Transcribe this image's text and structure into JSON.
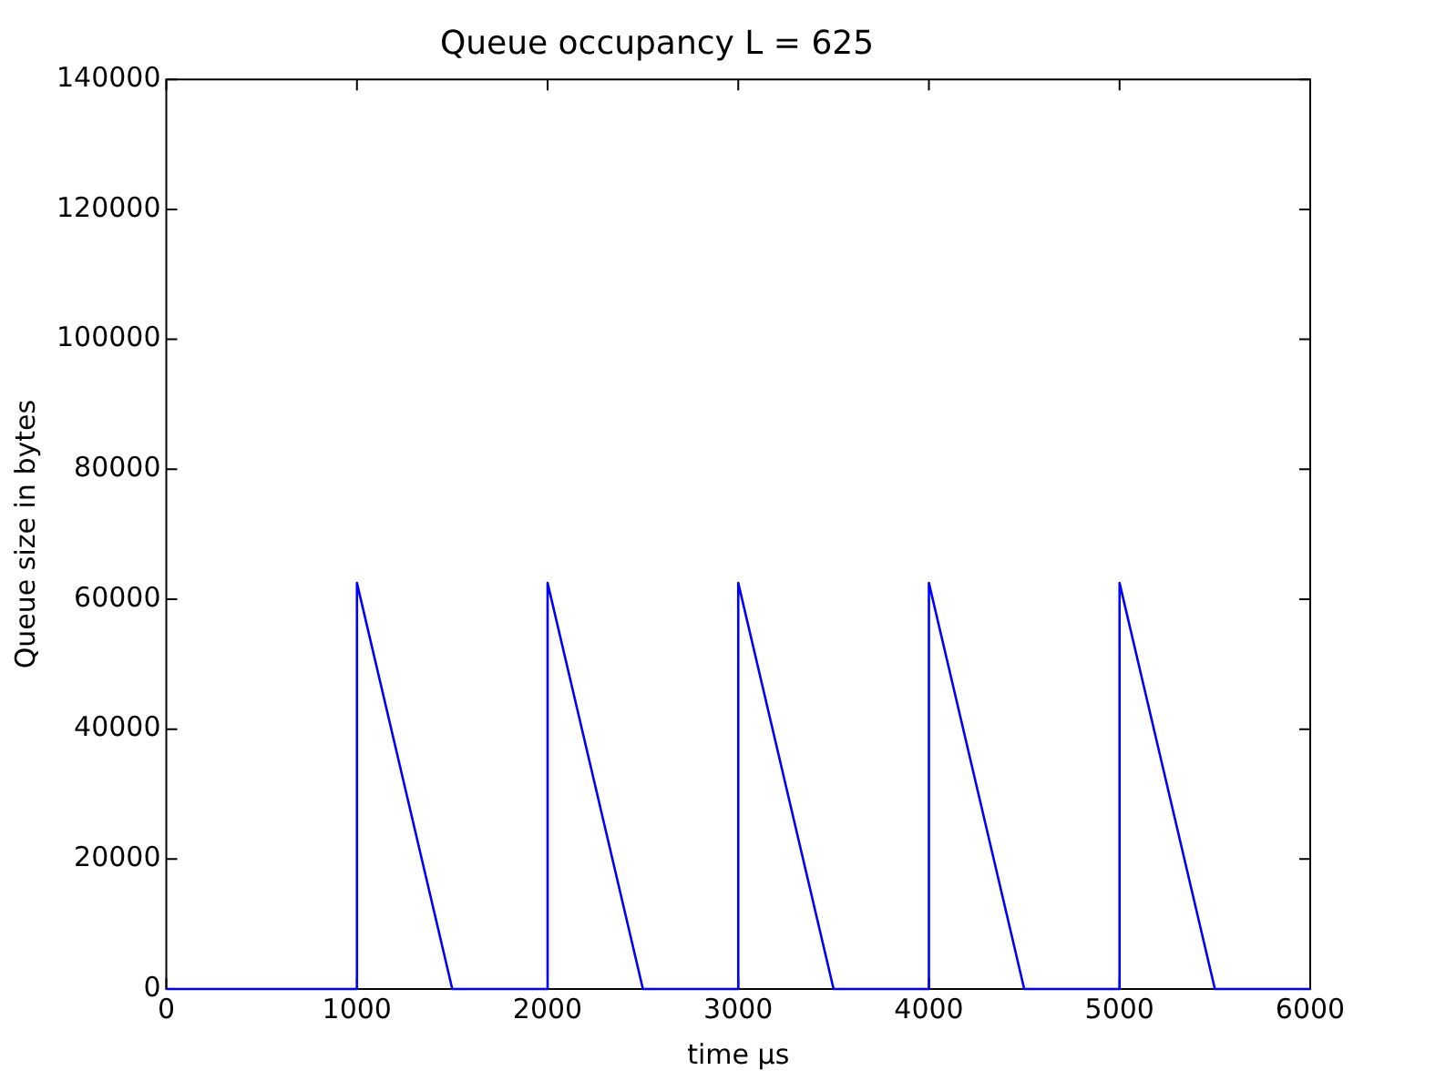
{
  "chart_data": {
    "type": "line",
    "title": "Queue occupancy L = 625",
    "xlabel": "time μs",
    "ylabel": "Queue size in bytes",
    "x": [
      0,
      1000,
      1000,
      1500,
      2000,
      2000,
      2500,
      3000,
      3000,
      3500,
      4000,
      4000,
      4500,
      5000,
      5000,
      5500,
      6000
    ],
    "series": [
      {
        "color": "#0000ff",
        "values": [
          0,
          0,
          62500,
          0,
          0,
          62500,
          0,
          0,
          62500,
          0,
          0,
          62500,
          0,
          0,
          62500,
          0,
          0
        ]
      }
    ],
    "xlim": [
      0,
      6000
    ],
    "xticks": [
      0,
      1000,
      2000,
      3000,
      4000,
      5000,
      6000
    ],
    "ylim": [
      0,
      140000
    ],
    "yticks": [
      0,
      20000,
      40000,
      60000,
      80000,
      100000,
      120000,
      140000
    ],
    "grid": false,
    "legend": false,
    "marker": "none",
    "line_style": "solid"
  }
}
